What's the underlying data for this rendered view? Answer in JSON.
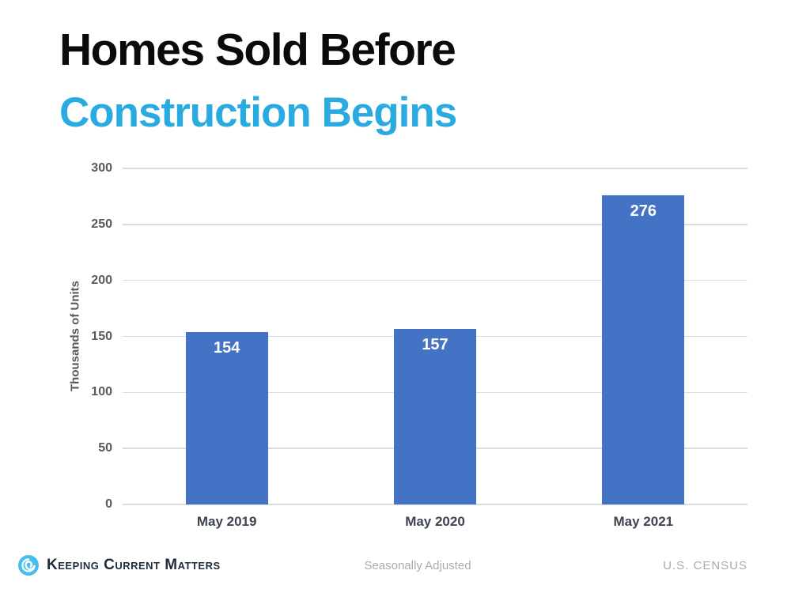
{
  "title": {
    "line1": "Homes Sold Before",
    "line2": "Construction Begins"
  },
  "colors": {
    "title_primary": "#0B0B0B",
    "title_accent": "#29ABE2",
    "bar": "#4472C4",
    "bar_value_text": "#FFFFFF",
    "axis_text": "#595959",
    "category_text": "#3E4450",
    "gridline": "#DCDCDC",
    "footer_muted_text": "#ABABAB",
    "brand_text": "#1E2B3A",
    "logo_blue": "#45BEEF"
  },
  "chart_data": {
    "type": "bar",
    "categories": [
      "May 2019",
      "May 2020",
      "May 2021"
    ],
    "values": [
      154,
      157,
      276
    ],
    "bar_labels": [
      "154",
      "157",
      "276"
    ],
    "title": "",
    "xlabel": "",
    "ylabel": "Thousands of Units",
    "ylim": [
      0,
      300
    ],
    "yticks": [
      300,
      250,
      200,
      150,
      100,
      50,
      0
    ],
    "grid": true,
    "legend": false
  },
  "footer": {
    "logo_icon": "swirl-icon",
    "brand": "Keeping Current Matters",
    "note": "Seasonally Adjusted",
    "source": "U.S. CENSUS"
  }
}
